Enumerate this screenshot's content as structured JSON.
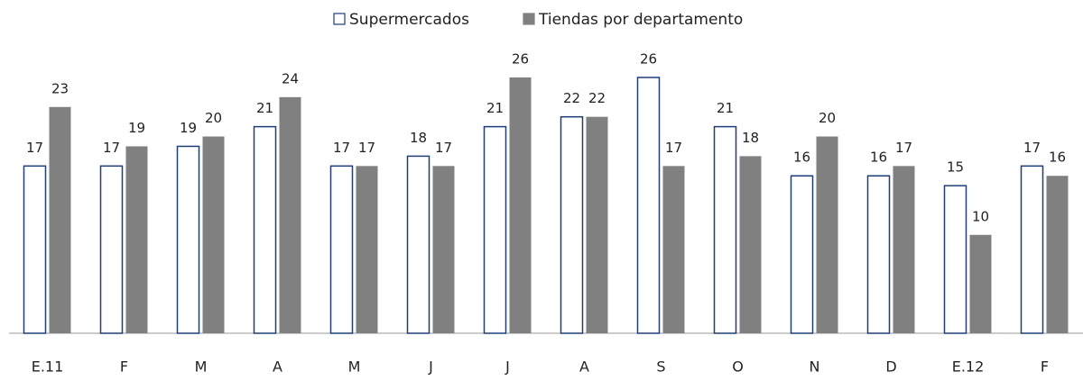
{
  "chart_data": {
    "type": "bar",
    "categories": [
      "E.11",
      "F",
      "M",
      "A",
      "M",
      "J",
      "J",
      "A",
      "S",
      "O",
      "N",
      "D",
      "E.12",
      "F"
    ],
    "series": [
      {
        "name": "Supermercados",
        "color": "#ffffff",
        "values": [
          17,
          17,
          19,
          21,
          17,
          18,
          21,
          22,
          26,
          21,
          16,
          16,
          15,
          17
        ]
      },
      {
        "name": "Tiendas por departamento",
        "color": "#808080",
        "values": [
          23,
          19,
          20,
          24,
          17,
          17,
          26,
          22,
          17,
          18,
          20,
          17,
          10,
          16
        ]
      }
    ]
  }
}
